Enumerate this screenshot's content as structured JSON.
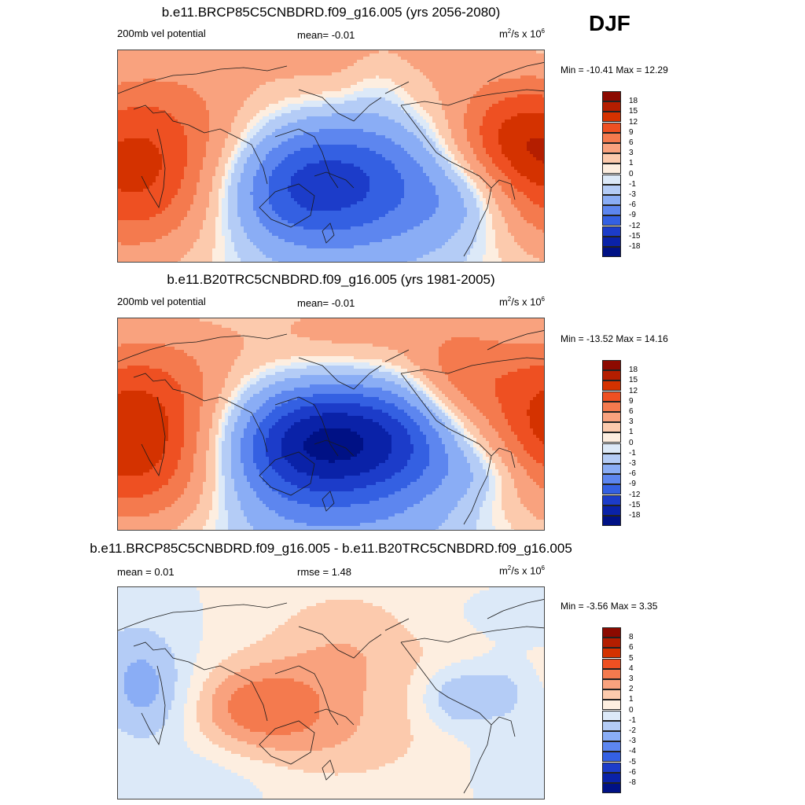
{
  "season": "DJF",
  "panels": [
    {
      "title": "b.e11.BRCP85C5CNBDRD.f09_g16.005 (yrs 2056-2080)",
      "left_label": "200mb vel potential",
      "mean_label": "mean=  -0.01",
      "rmse_label": "",
      "units_base": "m",
      "units_sup": "2",
      "units_mid": "/s x 10",
      "units_exp": "6",
      "minmax": "Min = -10.41 Max =  12.29",
      "colorbar_labels": [
        "18",
        "15",
        "12",
        "9",
        "6",
        "3",
        "1",
        "0",
        "-1",
        "-3",
        "-6",
        "-9",
        "-12",
        "-15",
        "-18"
      ],
      "field": "future"
    },
    {
      "title": "b.e11.B20TRC5CNBDRD.f09_g16.005 (yrs 1981-2005)",
      "left_label": "200mb vel potential",
      "mean_label": "mean=  -0.01",
      "rmse_label": "",
      "units_base": "m",
      "units_sup": "2",
      "units_mid": "/s x 10",
      "units_exp": "6",
      "minmax": "Min = -13.52 Max =  14.16",
      "colorbar_labels": [
        "18",
        "15",
        "12",
        "9",
        "6",
        "3",
        "1",
        "0",
        "-1",
        "-3",
        "-6",
        "-9",
        "-12",
        "-15",
        "-18"
      ],
      "field": "historical"
    },
    {
      "title": "b.e11.BRCP85C5CNBDRD.f09_g16.005 - b.e11.B20TRC5CNBDRD.f09_g16.005",
      "left_label": "mean =   0.01",
      "mean_label": "",
      "rmse_label": "rmse =   1.48",
      "units_base": "m",
      "units_sup": "2",
      "units_mid": "/s x 10",
      "units_exp": "6",
      "minmax": "Min =  -3.56 Max =   3.35",
      "colorbar_labels": [
        "8",
        "6",
        "5",
        "4",
        "3",
        "2",
        "1",
        "0",
        "-1",
        "-2",
        "-3",
        "-4",
        "-5",
        "-6",
        "-8"
      ],
      "field": "difference"
    }
  ],
  "colorbar_colors": [
    "#8c0a00",
    "#b41e00",
    "#d43200",
    "#ee5022",
    "#f47a4e",
    "#f9a27e",
    "#fccaad",
    "#fdeee0",
    "#dce9f8",
    "#b4ccf6",
    "#8aadf5",
    "#5d86ef",
    "#3460e2",
    "#1c3cc9",
    "#0a22a8",
    "#001185"
  ]
}
